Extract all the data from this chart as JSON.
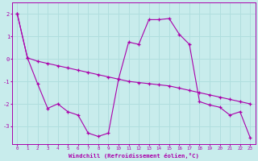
{
  "xlabel": "Windchill (Refroidissement éolien,°C)",
  "bg_color": "#c8ecec",
  "grid_color": "#b0dede",
  "line_color": "#aa00aa",
  "x_ticks": [
    0,
    1,
    2,
    3,
    4,
    5,
    6,
    7,
    8,
    9,
    10,
    11,
    12,
    13,
    14,
    15,
    16,
    17,
    18,
    19,
    20,
    21,
    22,
    23
  ],
  "y_ticks": [
    -3,
    -2,
    -1,
    0,
    1,
    2
  ],
  "ylim": [
    -3.8,
    2.5
  ],
  "xlim": [
    -0.5,
    23.5
  ],
  "line1_x": [
    0,
    1,
    2,
    3,
    4,
    5,
    6,
    7,
    8,
    9,
    10,
    11,
    12,
    13,
    14,
    15,
    16,
    17,
    18,
    19,
    20,
    21,
    22,
    23
  ],
  "line1_y": [
    2.0,
    0.05,
    -0.1,
    -0.2,
    -0.3,
    -0.4,
    -0.5,
    -0.6,
    -0.7,
    -0.8,
    -0.9,
    -1.0,
    -1.05,
    -1.1,
    -1.15,
    -1.2,
    -1.3,
    -1.4,
    -1.5,
    -1.6,
    -1.7,
    -1.8,
    -1.9,
    -2.0
  ],
  "line2_x": [
    0,
    1,
    2,
    3,
    4,
    5,
    6,
    7,
    8,
    9,
    10,
    11,
    12,
    13,
    14,
    15,
    16,
    17,
    18,
    19,
    20,
    21,
    22,
    23
  ],
  "line2_y": [
    2.0,
    0.05,
    -1.1,
    -2.2,
    -2.0,
    -2.35,
    -2.5,
    -3.3,
    -3.45,
    -3.3,
    -0.9,
    0.75,
    0.65,
    1.75,
    1.75,
    1.8,
    1.1,
    0.65,
    -1.9,
    -2.05,
    -2.15,
    -2.5,
    -2.35,
    -3.5
  ]
}
